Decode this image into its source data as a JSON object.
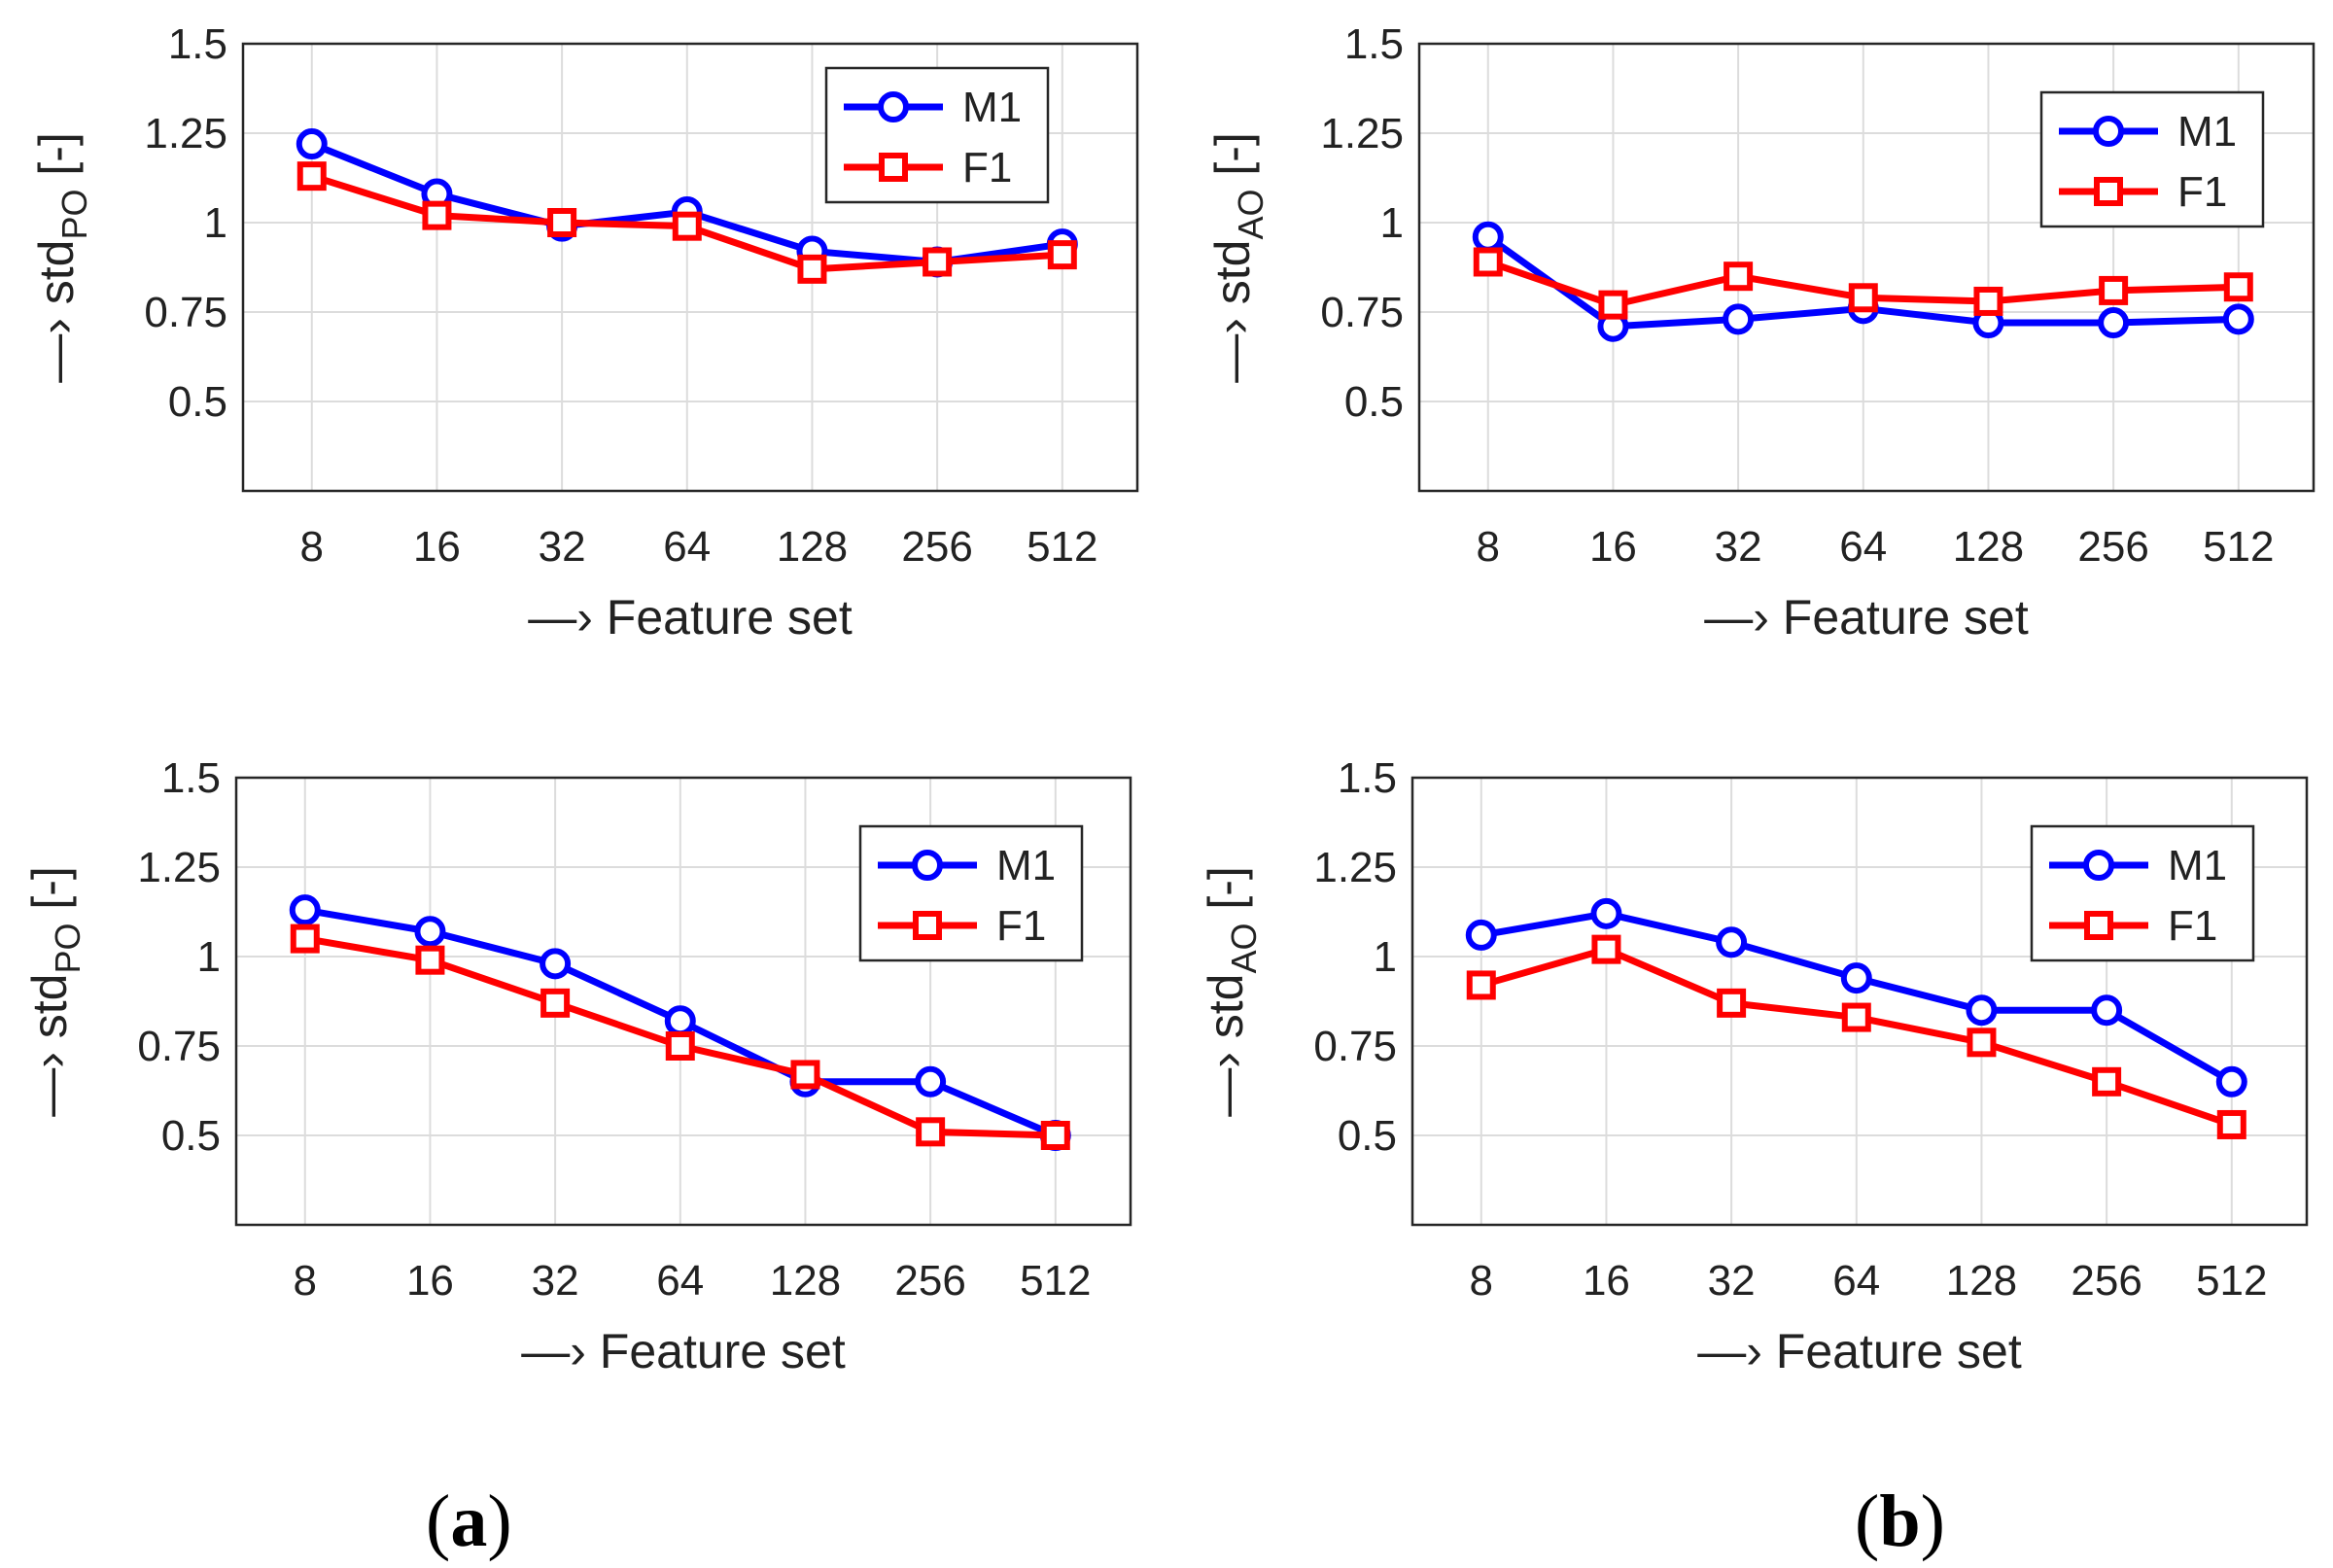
{
  "chart_data": [
    {
      "type": "line",
      "panel": "top-left",
      "title": "",
      "xlabel": "—› Feature set",
      "ylabel": "—› std",
      "ylabel_sub": "PO",
      "ylabel_suffix": " [-]",
      "categories": [
        "8",
        "16",
        "32",
        "64",
        "128",
        "256",
        "512"
      ],
      "yticks": [
        "0.5",
        "0.75",
        "1",
        "1.25",
        "1.5"
      ],
      "ylim": [
        0.25,
        1.5
      ],
      "grid": true,
      "legend_position": "top-right",
      "series": [
        {
          "name": "M1",
          "color": "#0000ff",
          "marker": "circle",
          "values": [
            1.22,
            1.08,
            0.99,
            1.03,
            0.92,
            0.89,
            0.94
          ]
        },
        {
          "name": "F1",
          "color": "#ff0000",
          "marker": "square",
          "values": [
            1.13,
            1.02,
            1.0,
            0.99,
            0.87,
            0.89,
            0.91
          ]
        }
      ]
    },
    {
      "type": "line",
      "panel": "top-right",
      "title": "",
      "xlabel": "—› Feature set",
      "ylabel": "—› std",
      "ylabel_sub": "AO",
      "ylabel_suffix": " [-]",
      "categories": [
        "8",
        "16",
        "32",
        "64",
        "128",
        "256",
        "512"
      ],
      "yticks": [
        "0.5",
        "0.75",
        "1",
        "1.25",
        "1.5"
      ],
      "ylim": [
        0.25,
        1.5
      ],
      "grid": true,
      "legend_position": "top-right",
      "series": [
        {
          "name": "M1",
          "color": "#0000ff",
          "marker": "circle",
          "values": [
            0.96,
            0.71,
            0.73,
            0.76,
            0.72,
            0.72,
            0.73
          ]
        },
        {
          "name": "F1",
          "color": "#ff0000",
          "marker": "square",
          "values": [
            0.89,
            0.77,
            0.85,
            0.79,
            0.78,
            0.81,
            0.82
          ]
        }
      ]
    },
    {
      "type": "line",
      "panel": "bottom-left",
      "title": "",
      "xlabel": "—› Feature set",
      "ylabel": "—› std",
      "ylabel_sub": "PO",
      "ylabel_suffix": " [-]",
      "categories": [
        "8",
        "16",
        "32",
        "64",
        "128",
        "256",
        "512"
      ],
      "yticks": [
        "0.5",
        "0.75",
        "1",
        "1.25",
        "1.5"
      ],
      "ylim": [
        0.25,
        1.5
      ],
      "grid": true,
      "legend_position": "top-right",
      "series": [
        {
          "name": "M1",
          "color": "#0000ff",
          "marker": "circle",
          "values": [
            1.13,
            1.07,
            0.98,
            0.82,
            0.65,
            0.65,
            0.5
          ]
        },
        {
          "name": "F1",
          "color": "#ff0000",
          "marker": "square",
          "values": [
            1.05,
            0.99,
            0.87,
            0.75,
            0.67,
            0.51,
            0.5
          ]
        }
      ]
    },
    {
      "type": "line",
      "panel": "bottom-right",
      "title": "",
      "xlabel": "—› Feature set",
      "ylabel": "—› std",
      "ylabel_sub": "AO",
      "ylabel_suffix": " [-]",
      "categories": [
        "8",
        "16",
        "32",
        "64",
        "128",
        "256",
        "512"
      ],
      "yticks": [
        "0.5",
        "0.75",
        "1",
        "1.25",
        "1.5"
      ],
      "ylim": [
        0.25,
        1.5
      ],
      "grid": true,
      "legend_position": "top-right",
      "series": [
        {
          "name": "M1",
          "color": "#0000ff",
          "marker": "circle",
          "values": [
            1.06,
            1.12,
            1.04,
            0.94,
            0.85,
            0.85,
            0.65
          ]
        },
        {
          "name": "F1",
          "color": "#ff0000",
          "marker": "square",
          "values": [
            0.92,
            1.02,
            0.87,
            0.83,
            0.76,
            0.65,
            0.53
          ]
        }
      ]
    }
  ],
  "panel_labels": {
    "a": {
      "open": "(",
      "letter": "a",
      "close": ")"
    },
    "b": {
      "open": "(",
      "letter": "b",
      "close": ")"
    }
  }
}
